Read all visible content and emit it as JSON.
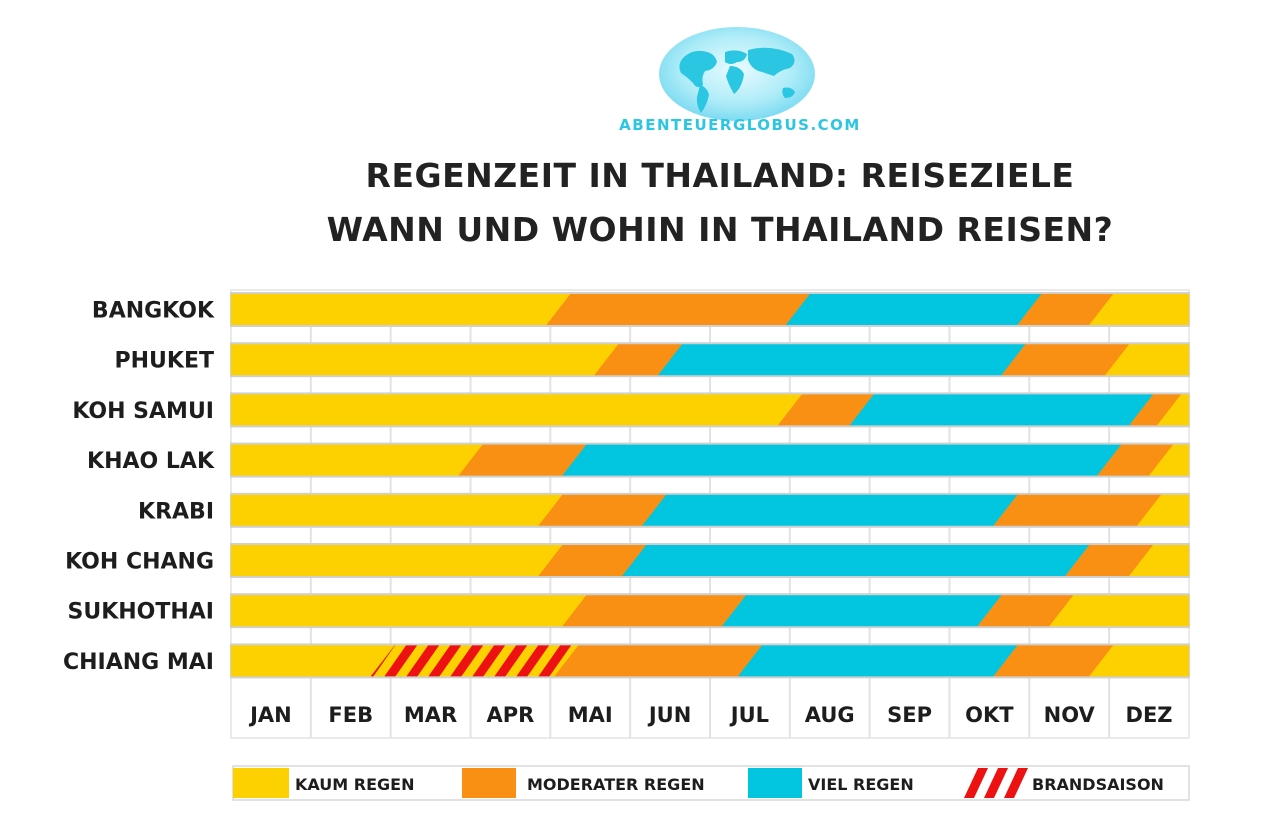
{
  "header": {
    "logo_text": "ABENTEUERGLOBUS.COM",
    "title_line1": "REGENZEIT IN THAILAND: REISEZIELE",
    "title_line2": "WANN UND WOHIN IN THAILAND REISEN?"
  },
  "colors": {
    "kaum": "#fdd100",
    "moderat": "#fa9013",
    "viel": "#02c5e0",
    "brand": "#ee1111"
  },
  "chart_data": {
    "type": "timeline",
    "title": "REGENZEIT IN THAILAND: REISEZIELE / WANN UND WOHIN IN THAILAND REISEN?",
    "x_unit": "months",
    "months": [
      "JAN",
      "FEB",
      "MAR",
      "APR",
      "MAI",
      "JUN",
      "JUL",
      "AUG",
      "SEP",
      "OKT",
      "NOV",
      "DEZ"
    ],
    "legend": [
      {
        "key": "kaum",
        "label": "KAUM REGEN"
      },
      {
        "key": "moderat",
        "label": "MODERATER REGEN"
      },
      {
        "key": "viel",
        "label": "VIEL REGEN"
      },
      {
        "key": "brand",
        "label": "BRANDSAISON"
      }
    ],
    "rows": [
      {
        "name": "BANGKOK",
        "segments": [
          {
            "cat": "kaum",
            "start": 0,
            "end": 4.1
          },
          {
            "cat": "moderat",
            "start": 4.1,
            "end": 7.1
          },
          {
            "cat": "viel",
            "start": 7.1,
            "end": 10.0
          },
          {
            "cat": "moderat",
            "start": 10.0,
            "end": 10.9
          },
          {
            "cat": "kaum",
            "start": 10.9,
            "end": 12
          }
        ]
      },
      {
        "name": "PHUKET",
        "segments": [
          {
            "cat": "kaum",
            "start": 0,
            "end": 4.7
          },
          {
            "cat": "moderat",
            "start": 4.7,
            "end": 5.5
          },
          {
            "cat": "viel",
            "start": 5.5,
            "end": 9.8
          },
          {
            "cat": "moderat",
            "start": 9.8,
            "end": 11.1
          },
          {
            "cat": "kaum",
            "start": 11.1,
            "end": 12
          }
        ]
      },
      {
        "name": "KOH SAMUI",
        "segments": [
          {
            "cat": "kaum",
            "start": 0,
            "end": 7.0
          },
          {
            "cat": "moderat",
            "start": 7.0,
            "end": 7.9
          },
          {
            "cat": "viel",
            "start": 7.9,
            "end": 11.4
          },
          {
            "cat": "moderat",
            "start": 11.4,
            "end": 11.75
          },
          {
            "cat": "kaum",
            "start": 11.75,
            "end": 12
          }
        ]
      },
      {
        "name": "KHAO LAK",
        "segments": [
          {
            "cat": "kaum",
            "start": 0,
            "end": 3.0
          },
          {
            "cat": "moderat",
            "start": 3.0,
            "end": 4.3
          },
          {
            "cat": "viel",
            "start": 4.3,
            "end": 11.0
          },
          {
            "cat": "moderat",
            "start": 11.0,
            "end": 11.65
          },
          {
            "cat": "kaum",
            "start": 11.65,
            "end": 12
          }
        ]
      },
      {
        "name": "KRABI",
        "segments": [
          {
            "cat": "kaum",
            "start": 0,
            "end": 4.0
          },
          {
            "cat": "moderat",
            "start": 4.0,
            "end": 5.3
          },
          {
            "cat": "viel",
            "start": 5.3,
            "end": 9.7
          },
          {
            "cat": "moderat",
            "start": 9.7,
            "end": 11.5
          },
          {
            "cat": "kaum",
            "start": 11.5,
            "end": 12
          }
        ]
      },
      {
        "name": "KOH CHANG",
        "segments": [
          {
            "cat": "kaum",
            "start": 0,
            "end": 4.0
          },
          {
            "cat": "moderat",
            "start": 4.0,
            "end": 5.05
          },
          {
            "cat": "viel",
            "start": 5.05,
            "end": 10.6
          },
          {
            "cat": "moderat",
            "start": 10.6,
            "end": 11.4
          },
          {
            "cat": "kaum",
            "start": 11.4,
            "end": 12
          }
        ]
      },
      {
        "name": "SUKHOTHAI",
        "segments": [
          {
            "cat": "kaum",
            "start": 0,
            "end": 4.3
          },
          {
            "cat": "moderat",
            "start": 4.3,
            "end": 6.3
          },
          {
            "cat": "viel",
            "start": 6.3,
            "end": 9.5
          },
          {
            "cat": "moderat",
            "start": 9.5,
            "end": 10.4
          },
          {
            "cat": "kaum",
            "start": 10.4,
            "end": 12
          }
        ]
      },
      {
        "name": "CHIANG MAI",
        "segments": [
          {
            "cat": "kaum",
            "start": 0,
            "end": 1.9
          },
          {
            "cat": "brand",
            "start": 1.9,
            "end": 4.2
          },
          {
            "cat": "moderat",
            "start": 4.2,
            "end": 6.5
          },
          {
            "cat": "viel",
            "start": 6.5,
            "end": 9.7
          },
          {
            "cat": "moderat",
            "start": 9.7,
            "end": 10.9
          },
          {
            "cat": "kaum",
            "start": 10.9,
            "end": 12
          }
        ]
      }
    ]
  }
}
